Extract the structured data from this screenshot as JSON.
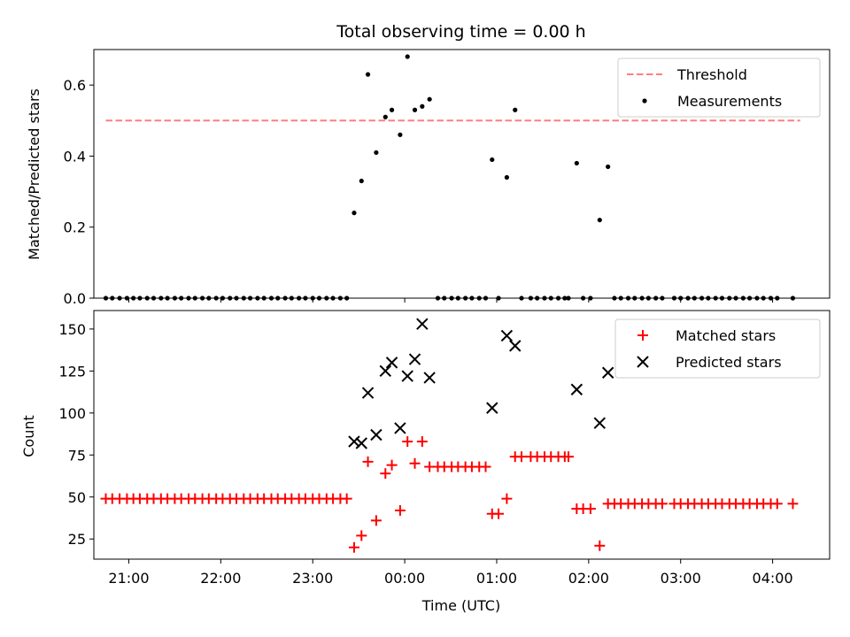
{
  "chart_data": {
    "title": "Total observing time = 0.00 h",
    "xlabel": "Time (UTC)",
    "x_unit": "hours_from_midnight_utc",
    "xlim": [
      -3.38,
      4.62
    ],
    "x_ticks": [
      {
        "value": -3,
        "label": "21:00"
      },
      {
        "value": -2,
        "label": "22:00"
      },
      {
        "value": -1,
        "label": "23:00"
      },
      {
        "value": 0,
        "label": "00:00"
      },
      {
        "value": 1,
        "label": "01:00"
      },
      {
        "value": 2,
        "label": "02:00"
      },
      {
        "value": 3,
        "label": "03:00"
      },
      {
        "value": 4,
        "label": "04:00"
      }
    ],
    "top": {
      "type": "scatter",
      "ylabel": "Matched/Predicted stars",
      "ylim": [
        0,
        0.7
      ],
      "y_ticks": [
        0.0,
        0.2,
        0.4,
        0.6
      ],
      "y_tick_labels": [
        "0.0",
        "0.2",
        "0.4",
        "0.6"
      ],
      "legend_placement": "top-right",
      "threshold": {
        "name": "Threshold",
        "y": 0.5,
        "x_start": -3.25,
        "x_end": 4.3,
        "color": "#ff7f7f"
      },
      "measurements": {
        "name": "Measurements",
        "color": "#000000",
        "points": [
          [
            -3.25,
            0
          ],
          [
            -3.18,
            0
          ],
          [
            -3.1,
            0
          ],
          [
            -3.02,
            0
          ],
          [
            -2.95,
            0
          ],
          [
            -2.88,
            0
          ],
          [
            -2.8,
            0
          ],
          [
            -2.73,
            0
          ],
          [
            -2.65,
            0
          ],
          [
            -2.58,
            0
          ],
          [
            -2.5,
            0
          ],
          [
            -2.43,
            0
          ],
          [
            -2.35,
            0
          ],
          [
            -2.28,
            0
          ],
          [
            -2.2,
            0
          ],
          [
            -2.13,
            0
          ],
          [
            -2.05,
            0
          ],
          [
            -1.98,
            0
          ],
          [
            -1.9,
            0
          ],
          [
            -1.83,
            0
          ],
          [
            -1.75,
            0
          ],
          [
            -1.68,
            0
          ],
          [
            -1.6,
            0
          ],
          [
            -1.53,
            0
          ],
          [
            -1.45,
            0
          ],
          [
            -1.38,
            0
          ],
          [
            -1.3,
            0
          ],
          [
            -1.23,
            0
          ],
          [
            -1.15,
            0
          ],
          [
            -1.08,
            0
          ],
          [
            -1.0,
            0
          ],
          [
            -0.93,
            0
          ],
          [
            -0.85,
            0
          ],
          [
            -0.78,
            0
          ],
          [
            -0.7,
            0
          ],
          [
            -0.63,
            0
          ],
          [
            -0.55,
            0.24
          ],
          [
            -0.47,
            0.33
          ],
          [
            -0.4,
            0.63
          ],
          [
            -0.31,
            0.41
          ],
          [
            -0.21,
            0.51
          ],
          [
            -0.14,
            0.53
          ],
          [
            -0.05,
            0.46
          ],
          [
            0.03,
            0.68
          ],
          [
            0.11,
            0.53
          ],
          [
            0.19,
            0.54
          ],
          [
            0.27,
            0.56
          ],
          [
            0.36,
            0
          ],
          [
            0.43,
            0
          ],
          [
            0.51,
            0
          ],
          [
            0.58,
            0
          ],
          [
            0.66,
            0
          ],
          [
            0.73,
            0
          ],
          [
            0.81,
            0
          ],
          [
            0.88,
            0
          ],
          [
            0.95,
            0.39
          ],
          [
            1.02,
            0
          ],
          [
            1.11,
            0.34
          ],
          [
            1.2,
            0.53
          ],
          [
            1.27,
            0
          ],
          [
            1.37,
            0
          ],
          [
            1.44,
            0
          ],
          [
            1.52,
            0
          ],
          [
            1.59,
            0
          ],
          [
            1.67,
            0
          ],
          [
            1.74,
            0
          ],
          [
            1.78,
            0
          ],
          [
            1.87,
            0.38
          ],
          [
            1.94,
            0
          ],
          [
            2.02,
            0
          ],
          [
            2.12,
            0.22
          ],
          [
            2.21,
            0.37
          ],
          [
            2.28,
            0
          ],
          [
            2.35,
            0
          ],
          [
            2.43,
            0
          ],
          [
            2.5,
            0
          ],
          [
            2.58,
            0
          ],
          [
            2.65,
            0
          ],
          [
            2.73,
            0
          ],
          [
            2.8,
            0
          ],
          [
            2.93,
            0
          ],
          [
            3.0,
            0
          ],
          [
            3.08,
            0
          ],
          [
            3.15,
            0
          ],
          [
            3.23,
            0
          ],
          [
            3.3,
            0
          ],
          [
            3.38,
            0
          ],
          [
            3.45,
            0
          ],
          [
            3.53,
            0
          ],
          [
            3.6,
            0
          ],
          [
            3.68,
            0
          ],
          [
            3.75,
            0
          ],
          [
            3.83,
            0
          ],
          [
            3.9,
            0
          ],
          [
            3.98,
            0
          ],
          [
            4.05,
            0
          ],
          [
            4.22,
            0
          ]
        ]
      }
    },
    "bottom": {
      "type": "scatter",
      "ylabel": "Count",
      "ylim": [
        13,
        161
      ],
      "y_ticks": [
        25,
        50,
        75,
        100,
        125,
        150
      ],
      "y_tick_labels": [
        "25",
        "50",
        "75",
        "100",
        "125",
        "150"
      ],
      "legend_placement": "top-right",
      "series": [
        {
          "name": "Matched stars",
          "marker": "plus",
          "color": "#ff0000",
          "points": [
            [
              -3.25,
              49
            ],
            [
              -3.18,
              49
            ],
            [
              -3.1,
              49
            ],
            [
              -3.02,
              49
            ],
            [
              -2.95,
              49
            ],
            [
              -2.88,
              49
            ],
            [
              -2.8,
              49
            ],
            [
              -2.73,
              49
            ],
            [
              -2.65,
              49
            ],
            [
              -2.58,
              49
            ],
            [
              -2.5,
              49
            ],
            [
              -2.43,
              49
            ],
            [
              -2.35,
              49
            ],
            [
              -2.28,
              49
            ],
            [
              -2.2,
              49
            ],
            [
              -2.13,
              49
            ],
            [
              -2.05,
              49
            ],
            [
              -1.98,
              49
            ],
            [
              -1.9,
              49
            ],
            [
              -1.83,
              49
            ],
            [
              -1.75,
              49
            ],
            [
              -1.68,
              49
            ],
            [
              -1.6,
              49
            ],
            [
              -1.53,
              49
            ],
            [
              -1.45,
              49
            ],
            [
              -1.38,
              49
            ],
            [
              -1.3,
              49
            ],
            [
              -1.23,
              49
            ],
            [
              -1.15,
              49
            ],
            [
              -1.08,
              49
            ],
            [
              -1.0,
              49
            ],
            [
              -0.93,
              49
            ],
            [
              -0.85,
              49
            ],
            [
              -0.78,
              49
            ],
            [
              -0.7,
              49
            ],
            [
              -0.63,
              49
            ],
            [
              -0.55,
              20
            ],
            [
              -0.47,
              27
            ],
            [
              -0.4,
              71
            ],
            [
              -0.31,
              36
            ],
            [
              -0.21,
              64
            ],
            [
              -0.14,
              69
            ],
            [
              -0.05,
              42
            ],
            [
              0.03,
              83
            ],
            [
              0.11,
              70
            ],
            [
              0.19,
              83
            ],
            [
              0.27,
              68
            ],
            [
              0.36,
              68
            ],
            [
              0.43,
              68
            ],
            [
              0.51,
              68
            ],
            [
              0.58,
              68
            ],
            [
              0.66,
              68
            ],
            [
              0.73,
              68
            ],
            [
              0.81,
              68
            ],
            [
              0.88,
              68
            ],
            [
              0.95,
              40
            ],
            [
              1.02,
              40
            ],
            [
              1.11,
              49
            ],
            [
              1.2,
              74
            ],
            [
              1.27,
              74
            ],
            [
              1.37,
              74
            ],
            [
              1.44,
              74
            ],
            [
              1.52,
              74
            ],
            [
              1.59,
              74
            ],
            [
              1.67,
              74
            ],
            [
              1.74,
              74
            ],
            [
              1.78,
              74
            ],
            [
              1.87,
              43
            ],
            [
              1.94,
              43
            ],
            [
              2.02,
              43
            ],
            [
              2.12,
              21
            ],
            [
              2.21,
              46
            ],
            [
              2.28,
              46
            ],
            [
              2.35,
              46
            ],
            [
              2.43,
              46
            ],
            [
              2.5,
              46
            ],
            [
              2.58,
              46
            ],
            [
              2.65,
              46
            ],
            [
              2.73,
              46
            ],
            [
              2.8,
              46
            ],
            [
              2.93,
              46
            ],
            [
              3.0,
              46
            ],
            [
              3.08,
              46
            ],
            [
              3.15,
              46
            ],
            [
              3.23,
              46
            ],
            [
              3.3,
              46
            ],
            [
              3.38,
              46
            ],
            [
              3.45,
              46
            ],
            [
              3.53,
              46
            ],
            [
              3.6,
              46
            ],
            [
              3.68,
              46
            ],
            [
              3.75,
              46
            ],
            [
              3.83,
              46
            ],
            [
              3.9,
              46
            ],
            [
              3.98,
              46
            ],
            [
              4.05,
              46
            ],
            [
              4.22,
              46
            ]
          ]
        },
        {
          "name": "Predicted stars",
          "marker": "x",
          "color": "#000000",
          "points": [
            [
              -0.55,
              83
            ],
            [
              -0.47,
              82
            ],
            [
              -0.4,
              112
            ],
            [
              -0.31,
              87
            ],
            [
              -0.21,
              125
            ],
            [
              -0.14,
              130
            ],
            [
              -0.05,
              91
            ],
            [
              0.03,
              122
            ],
            [
              0.11,
              132
            ],
            [
              0.19,
              153
            ],
            [
              0.27,
              121
            ],
            [
              0.95,
              103
            ],
            [
              1.11,
              146
            ],
            [
              1.2,
              140
            ],
            [
              1.87,
              114
            ],
            [
              2.12,
              94
            ],
            [
              2.21,
              124
            ]
          ]
        }
      ]
    }
  }
}
